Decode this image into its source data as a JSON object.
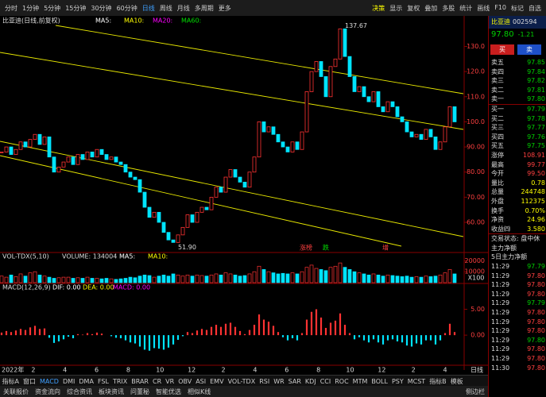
{
  "toolbar": {
    "periods": [
      "分时",
      "1分钟",
      "5分钟",
      "15分钟",
      "30分钟",
      "60分钟",
      "日线",
      "周线",
      "月线",
      "多周期",
      "更多"
    ],
    "active_period": 6,
    "tools": [
      "决策",
      "显示",
      "复权",
      "叠加",
      "多股",
      "统计",
      "画线",
      "F10",
      "标记",
      "自选"
    ]
  },
  "chart": {
    "title": "比亚迪(日线,前复权)",
    "ma_labels": [
      "MA5:",
      "MA10:",
      "MA20:",
      "MA60:"
    ],
    "ma_colors": [
      "#ffffff",
      "#ffff00",
      "#ff00ff",
      "#00e000"
    ],
    "ylim": [
      48,
      139
    ],
    "yticks": [
      {
        "value": 130,
        "label": "130.0"
      },
      {
        "value": 120,
        "label": "120.0"
      },
      {
        "value": 110,
        "label": "110.0"
      },
      {
        "value": 100,
        "label": "100.0"
      },
      {
        "value": 90,
        "label": "90.00"
      },
      {
        "value": 80,
        "label": "80.00"
      },
      {
        "value": 70,
        "label": "70.00"
      },
      {
        "value": 60,
        "label": "60.00"
      }
    ],
    "high_label": "137.67",
    "low_label": "51.90",
    "event_tags": [
      "涨榜",
      "跌",
      "增"
    ],
    "close": [
      88,
      90,
      87,
      89,
      92,
      90,
      93,
      95,
      91,
      94,
      86,
      80,
      82,
      84,
      86,
      83,
      87,
      85,
      88,
      86,
      89,
      87,
      85,
      86,
      84,
      83,
      80,
      78,
      77,
      72,
      66,
      62,
      64,
      60,
      56,
      53,
      52,
      55,
      58,
      63,
      60,
      64,
      66,
      65,
      70,
      74,
      72,
      78,
      81,
      78,
      76,
      74,
      80,
      86,
      100,
      96,
      98,
      95,
      92,
      90,
      88,
      92,
      89,
      96,
      112,
      120,
      124,
      118,
      110,
      122,
      125,
      137,
      126,
      118,
      112,
      114,
      110,
      108,
      112,
      106,
      104,
      108,
      106,
      102,
      100,
      96,
      94,
      95,
      93,
      97,
      94,
      89,
      92,
      98,
      106,
      100
    ]
  },
  "volume": {
    "header": "VOL-TDX(5,10)",
    "volume_label": "VOLUME: 134004",
    "ma_labels": [
      "MA5:",
      "MA10:"
    ],
    "ylim": [
      0,
      21000
    ],
    "yticks": [
      20000,
      10000
    ],
    "unit": "X100",
    "values": [
      6000,
      5000,
      7000,
      5500,
      8000,
      6000,
      9000,
      10000,
      7000,
      6000,
      5000,
      4000,
      4500,
      5000,
      5000,
      4000,
      4500,
      4000,
      5000,
      4000,
      4000,
      3500,
      4000,
      3500,
      3000,
      3500,
      4000,
      5000,
      4500,
      6000,
      7000,
      6500,
      5000,
      6000,
      7000,
      6000,
      8000,
      7000,
      6000,
      7000,
      6000,
      7000,
      6500,
      6000,
      7000,
      8000,
      7000,
      9000,
      8000,
      7000,
      6000,
      6500,
      8000,
      10000,
      15000,
      12000,
      10000,
      9000,
      8000,
      8500,
      8000,
      9000,
      8000,
      10000,
      14000,
      16000,
      13000,
      12000,
      11000,
      14000,
      15000,
      18000,
      14000,
      12000,
      10000,
      9000,
      8000,
      7000,
      8000,
      7000,
      6000,
      7000,
      6500,
      6000,
      5500,
      6000,
      5000,
      5500,
      5000,
      6000,
      5500,
      6000,
      7000,
      9000,
      12000,
      8000
    ]
  },
  "macd": {
    "header": "MACD(12,26,9)",
    "labels": [
      "DIF: 0.00",
      "DEA: 0.00",
      "MACD: 0.00"
    ],
    "label_colors": [
      "#ffffff",
      "#ffff00",
      "#ff00ff"
    ],
    "ylim": [
      -5.5,
      8.6
    ],
    "yticks": [
      {
        "value": 5,
        "label": "5.00"
      },
      {
        "value": 0,
        "label": "0.00"
      }
    ],
    "values": [
      0.5,
      0.8,
      0.6,
      0.9,
      1.2,
      1.0,
      1.5,
      1.8,
      1.2,
      1.3,
      -0.5,
      -1.5,
      -1.2,
      -0.8,
      -0.3,
      -0.6,
      0.2,
      0.1,
      0.4,
      0.2,
      0.5,
      0.3,
      0,
      -0.2,
      -0.5,
      -0.6,
      -1.0,
      -1.4,
      -1.6,
      -2.2,
      -2.8,
      -3.0,
      -2.5,
      -2.6,
      -2.8,
      -2.4,
      -1.8,
      -0.9,
      -0.2,
      0.6,
      0.4,
      0.9,
      1.2,
      1.0,
      1.6,
      2.0,
      1.6,
      2.2,
      2.4,
      1.6,
      0.8,
      0.2,
      1.0,
      2.0,
      4.0,
      3.0,
      2.6,
      1.8,
      0.6,
      -0.4,
      -1.0,
      -0.6,
      -1.0,
      0.4,
      3.0,
      4.5,
      5.0,
      3.4,
      1.4,
      2.4,
      2.8,
      4.2,
      2.0,
      0.4,
      -0.8,
      -0.4,
      -1.0,
      -1.4,
      -0.8,
      -1.4,
      -1.8,
      -1.0,
      -0.8,
      -1.2,
      -1.4,
      -2.0,
      -2.2,
      -1.6,
      -1.8,
      -1.0,
      -1.0,
      -1.8,
      -1.0,
      0.4,
      2.2,
      0.6
    ]
  },
  "x_axis": {
    "labels": [
      "2022年",
      "2",
      "4",
      "6",
      "8",
      "10",
      "12",
      "2",
      "4",
      "6",
      "8",
      "10",
      "12",
      "2",
      "4"
    ],
    "button": "日线"
  },
  "indicator_tabs": [
    "指标A",
    "窗口",
    "MACD",
    "DMI",
    "DMA",
    "FSL",
    "TRIX",
    "BRAR",
    "CR",
    "VR",
    "OBV",
    "ASI",
    "EMV",
    "VOL-TDX",
    "RSI",
    "WR",
    "SAR",
    "KDJ",
    "CCI",
    "ROC",
    "MTM",
    "BOLL",
    "PSY",
    "MCST",
    "指标B",
    "模板"
  ],
  "active_tab": 2,
  "status_bar": {
    "items": [
      "关联报价",
      "资金流向",
      "综合资讯",
      "板块资讯",
      "问董秘",
      "智能优选",
      "相似K线"
    ],
    "right": "侧边栏"
  },
  "quote": {
    "name": "比亚迪",
    "code": "002594",
    "price": "97.80",
    "change": "-1.21",
    "buy": "买",
    "sell": "卖",
    "asks": [
      {
        "label": "卖五",
        "price": "97.85"
      },
      {
        "label": "卖四",
        "price": "97.84"
      },
      {
        "label": "卖三",
        "price": "97.82"
      },
      {
        "label": "卖二",
        "price": "97.81"
      },
      {
        "label": "卖一",
        "price": "97.80"
      }
    ],
    "bids": [
      {
        "label": "买一",
        "price": "97.79"
      },
      {
        "label": "买二",
        "price": "97.78"
      },
      {
        "label": "买三",
        "price": "97.77"
      },
      {
        "label": "买四",
        "price": "97.76"
      },
      {
        "label": "买五",
        "price": "97.75"
      }
    ],
    "stats": [
      {
        "label": "涨停",
        "value": "108.91"
      },
      {
        "label": "最高",
        "value": "99.77"
      },
      {
        "label": "今开",
        "value": "99.50"
      },
      {
        "label": "量比",
        "value": "0.78"
      },
      {
        "label": "总量",
        "value": "244748"
      },
      {
        "label": "外盘",
        "value": "112375"
      },
      {
        "label": "换手",
        "value": "0.70%"
      },
      {
        "label": "净资",
        "value": "24.96"
      },
      {
        "label": "收益㈣",
        "value": "3.580"
      }
    ],
    "status": "交易状态: 盘中休",
    "flows": [
      "主力净额",
      "5日主力净额"
    ],
    "trades": [
      {
        "time": "11:29",
        "price": "97.79"
      },
      {
        "time": "11:29",
        "price": "97.80"
      },
      {
        "time": "11:29",
        "price": "97.80"
      },
      {
        "time": "11:29",
        "price": "97.80"
      },
      {
        "time": "11:29",
        "price": "97.79"
      },
      {
        "time": "11:29",
        "price": "97.80"
      },
      {
        "time": "11:29",
        "price": "97.80"
      },
      {
        "time": "11:29",
        "price": "97.80"
      },
      {
        "time": "11:29",
        "price": "97.80"
      },
      {
        "time": "11:29",
        "price": "97.80"
      },
      {
        "time": "11:29",
        "price": "97.80"
      },
      {
        "time": "11:30",
        "price": "97.80"
      }
    ]
  }
}
